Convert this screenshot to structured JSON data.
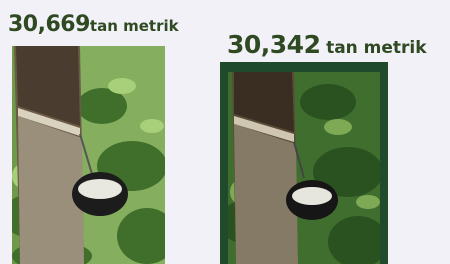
{
  "panels": [
    {
      "value": "30,669",
      "unit": "tan metrik"
    },
    {
      "value": "30,342",
      "unit": "tan metrik"
    }
  ]
}
